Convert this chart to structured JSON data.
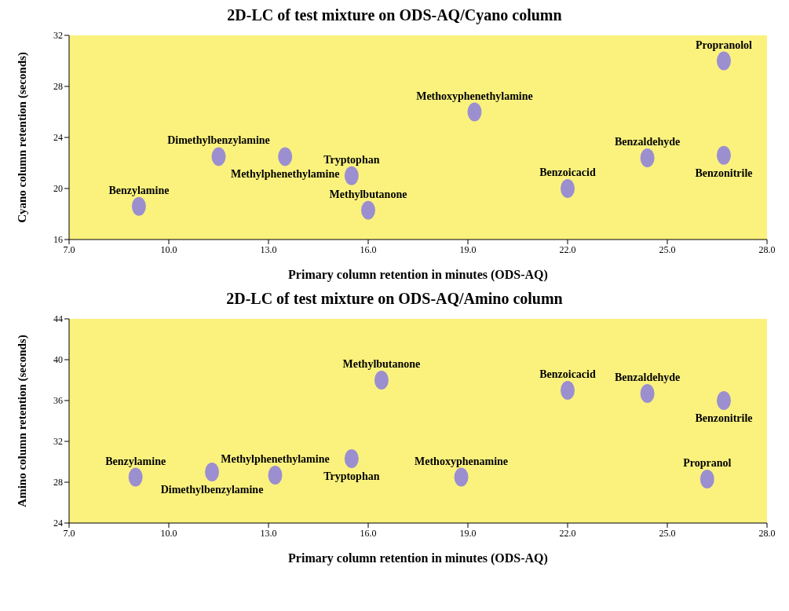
{
  "chart_data": [
    {
      "type": "scatter",
      "title": "2D-LC of test mixture on ODS-AQ/Cyano column",
      "xlabel": "Primary column retention in minutes (ODS-AQ)",
      "ylabel": "Cyano column retention (seconds)",
      "color": "#9b8fd0",
      "marker": "circle",
      "grid": false,
      "legend": false,
      "x": [
        9.1,
        11.5,
        13.5,
        15.5,
        16,
        19.2,
        22,
        24.4,
        26.7,
        26.7
      ],
      "values": [
        18.6,
        22.5,
        22.5,
        21,
        18.3,
        26,
        20,
        22.4,
        22.6,
        30
      ],
      "xlim": [
        7,
        28
      ],
      "xticks": [
        {
          "value": 7,
          "label": "7.0"
        },
        {
          "value": 10,
          "label": "10.0"
        },
        {
          "value": 13,
          "label": "13.0"
        },
        {
          "value": 16,
          "label": "16.0"
        },
        {
          "value": 19,
          "label": "19.0"
        },
        {
          "value": 22,
          "label": "22.0"
        },
        {
          "value": 25,
          "label": "25.0"
        },
        {
          "value": 28,
          "label": "28.0"
        }
      ],
      "ylim": [
        16,
        32
      ],
      "yticks": [
        16,
        20,
        24,
        28,
        32
      ],
      "annotations": [
        {
          "text": "Benzylamine",
          "x": 9.1,
          "y": 18.6
        },
        {
          "text": "Dimethylbenzylamine",
          "x": 11.5,
          "y": 22.5
        },
        {
          "text": "Methylphenethylamine",
          "x": 13.5,
          "y": 22.5
        },
        {
          "text": "Tryptophan",
          "x": 15.5,
          "y": 21
        },
        {
          "text": "Methylbutanone",
          "x": 16,
          "y": 18.3
        },
        {
          "text": "Methoxyphenethylamine",
          "x": 19.2,
          "y": 26
        },
        {
          "text": "Benzoicacid",
          "x": 22,
          "y": 20
        },
        {
          "text": "Benzaldehyde",
          "x": 24.4,
          "y": 22.4
        },
        {
          "text": "Benzonitrile",
          "x": 26.7,
          "y": 22.6
        },
        {
          "text": "Propranolol",
          "x": 26.7,
          "y": 30
        }
      ]
    },
    {
      "type": "scatter",
      "title": "2D-LC of test mixture on ODS-AQ/Amino column",
      "xlabel": "Primary column retention in minutes (ODS-AQ)",
      "ylabel": "Amino column retention (seconds)",
      "color": "#9b8fd0",
      "marker": "circle",
      "grid": false,
      "legend": false,
      "x": [
        9,
        11.3,
        13.2,
        15.5,
        16.4,
        18.8,
        22,
        24.4,
        26.7,
        26.2
      ],
      "values": [
        28.5,
        29,
        28.7,
        30.3,
        38,
        28.5,
        37,
        36.7,
        36,
        28.3
      ],
      "xlim": [
        7,
        28
      ],
      "xticks": [
        {
          "value": 7,
          "label": "7.0"
        },
        {
          "value": 10,
          "label": "10.0"
        },
        {
          "value": 13,
          "label": "13.0"
        },
        {
          "value": 16,
          "label": "16.0"
        },
        {
          "value": 19,
          "label": "19.0"
        },
        {
          "value": 22,
          "label": "22.0"
        },
        {
          "value": 25,
          "label": "25.0"
        },
        {
          "value": 28,
          "label": "28.0"
        }
      ],
      "ylim": [
        24,
        44
      ],
      "yticks": [
        24,
        28,
        32,
        36,
        40,
        44
      ],
      "annotations": [
        {
          "text": "Benzylamine",
          "x": 9,
          "y": 28.5
        },
        {
          "text": "Dimethylbenzylamine",
          "x": 11.3,
          "y": 29
        },
        {
          "text": "Methylphenethylamine",
          "x": 13.2,
          "y": 28.7
        },
        {
          "text": "Tryptophan",
          "x": 15.5,
          "y": 30.3
        },
        {
          "text": "Methylbutanone",
          "x": 16.4,
          "y": 38
        },
        {
          "text": "Methoxyphenamine",
          "x": 18.8,
          "y": 28.5
        },
        {
          "text": "Benzoicacid",
          "x": 22,
          "y": 37
        },
        {
          "text": "Benzaldehyde",
          "x": 24.4,
          "y": 36.7
        },
        {
          "text": "Benzonitrile",
          "x": 26.7,
          "y": 36
        },
        {
          "text": "Propranol",
          "x": 26.2,
          "y": 28.3
        }
      ]
    }
  ]
}
